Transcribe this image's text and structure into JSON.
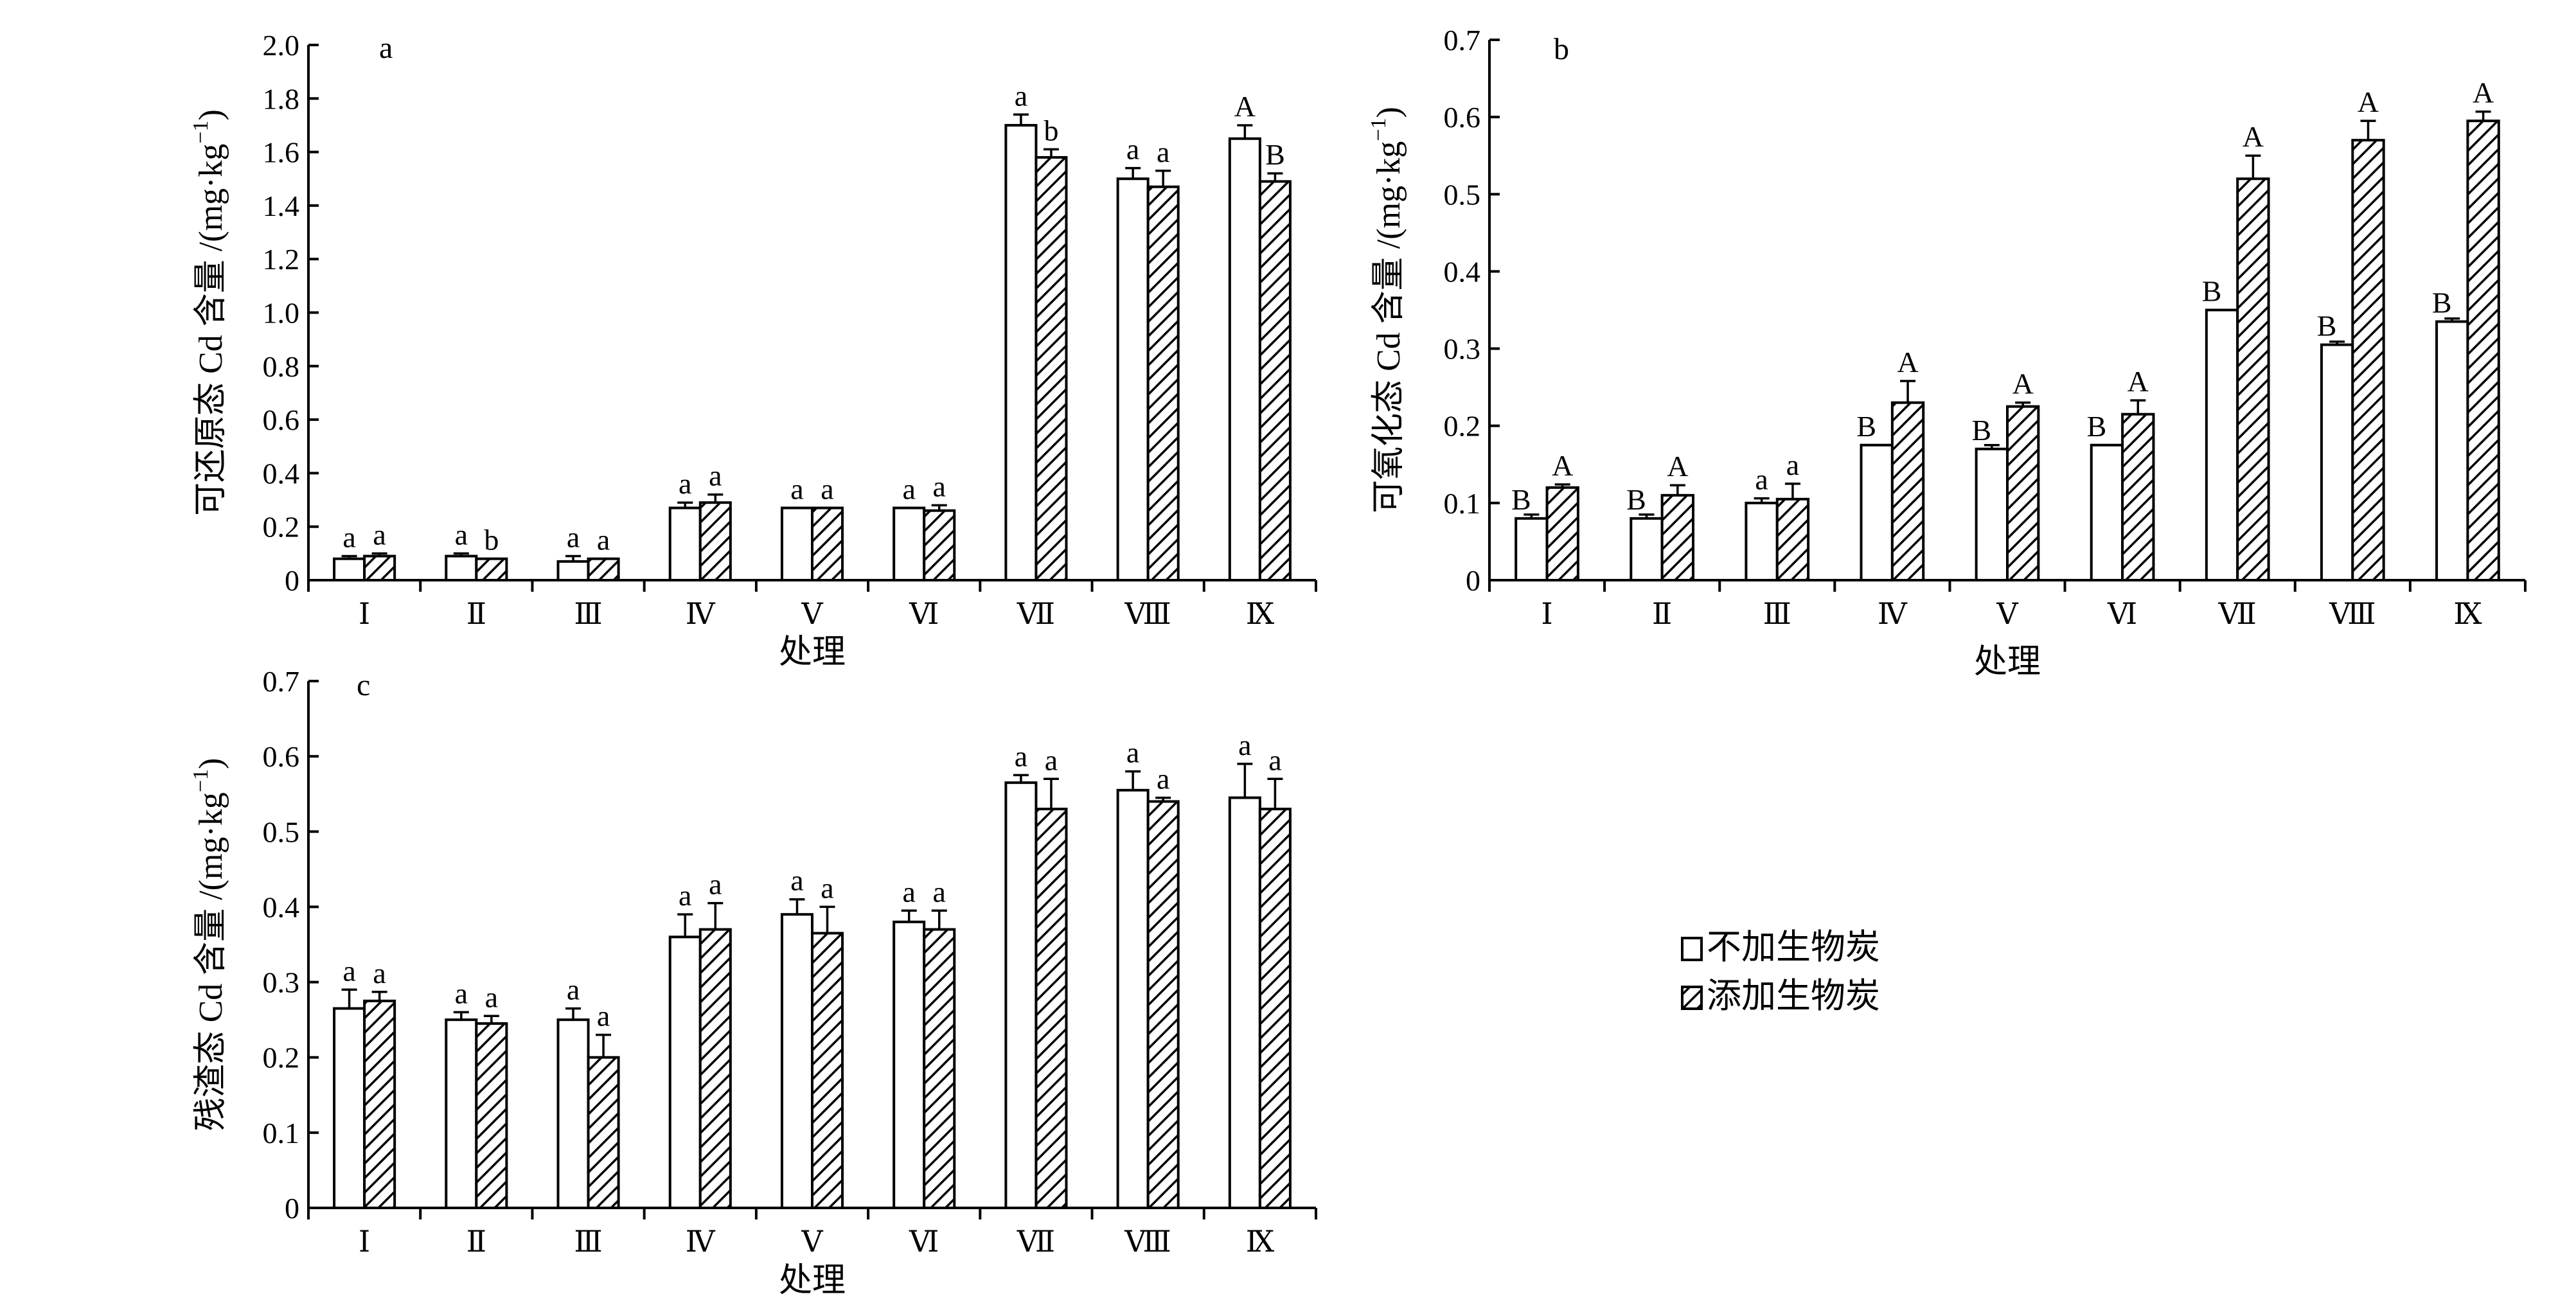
{
  "legend": {
    "items": [
      {
        "label": "不加生物炭",
        "style": "plain"
      },
      {
        "label": "添加生物炭",
        "style": "hatched"
      }
    ]
  },
  "chart_data": [
    {
      "type": "bar",
      "panel": "a",
      "xlabel": "处理",
      "ylabel": "可还原态 Cd 含量 /(mg·kg",
      "ylabel_sup": "−1",
      "ylabel_tail": ")",
      "ylim": [
        0,
        2.0
      ],
      "yticks": [
        {
          "v": 0,
          "t": "0"
        },
        {
          "v": 0.2,
          "t": "0.2"
        },
        {
          "v": 0.4,
          "t": "0.4"
        },
        {
          "v": 0.6,
          "t": "0.6"
        },
        {
          "v": 0.8,
          "t": "0.8"
        },
        {
          "v": 1.0,
          "t": "1.0"
        },
        {
          "v": 1.2,
          "t": "1.2"
        },
        {
          "v": 1.4,
          "t": "1.4"
        },
        {
          "v": 1.6,
          "t": "1.6"
        },
        {
          "v": 1.8,
          "t": "1.8"
        },
        {
          "v": 2.0,
          "t": "2.0"
        }
      ],
      "categories": [
        "Ⅰ",
        "Ⅱ",
        "Ⅲ",
        "Ⅳ",
        "Ⅴ",
        "Ⅵ",
        "Ⅶ",
        "Ⅷ",
        "Ⅸ"
      ],
      "series": [
        {
          "name": "不加生物炭",
          "values": [
            0.08,
            0.09,
            0.07,
            0.27,
            0.27,
            0.27,
            1.7,
            1.5,
            1.65
          ],
          "errors": [
            0.01,
            0.01,
            0.02,
            0.02,
            0.0,
            0.0,
            0.04,
            0.04,
            0.05
          ],
          "labels": [
            "a",
            "a",
            "a",
            "a",
            "a",
            "a",
            "a",
            "a",
            "A"
          ]
        },
        {
          "name": "添加生物炭",
          "values": [
            0.09,
            0.08,
            0.08,
            0.29,
            0.27,
            0.26,
            1.58,
            1.47,
            1.49
          ],
          "errors": [
            0.01,
            0.0,
            0.0,
            0.03,
            0.0,
            0.02,
            0.03,
            0.06,
            0.03
          ],
          "labels": [
            "a",
            "b",
            "a",
            "a",
            "a",
            "a",
            "b",
            "a",
            "B"
          ]
        }
      ]
    },
    {
      "type": "bar",
      "panel": "b",
      "xlabel": "处理",
      "ylabel": "可氧化态 Cd 含量 /(mg·kg",
      "ylabel_sup": "−1",
      "ylabel_tail": ")",
      "ylim": [
        0,
        0.7
      ],
      "yticks": [
        {
          "v": 0,
          "t": "0"
        },
        {
          "v": 0.1,
          "t": "0.1"
        },
        {
          "v": 0.2,
          "t": "0.2"
        },
        {
          "v": 0.3,
          "t": "0.3"
        },
        {
          "v": 0.4,
          "t": "0.4"
        },
        {
          "v": 0.5,
          "t": "0.5"
        },
        {
          "v": 0.6,
          "t": "0.6"
        },
        {
          "v": 0.7,
          "t": "0.7"
        }
      ],
      "categories": [
        "Ⅰ",
        "Ⅱ",
        "Ⅲ",
        "Ⅳ",
        "Ⅴ",
        "Ⅵ",
        "Ⅶ",
        "Ⅷ",
        "Ⅸ"
      ],
      "series": [
        {
          "name": "不加生物炭",
          "values": [
            0.08,
            0.08,
            0.1,
            0.175,
            0.17,
            0.175,
            0.35,
            0.305,
            0.335
          ],
          "errors": [
            0.005,
            0.005,
            0.006,
            0.0,
            0.005,
            0.0,
            0.0,
            0.004,
            0.004
          ],
          "labels": [
            "B",
            "B",
            "a",
            "B",
            "B",
            "B",
            "B",
            "B",
            "B"
          ]
        },
        {
          "name": "添加生物炭",
          "values": [
            0.12,
            0.11,
            0.105,
            0.23,
            0.225,
            0.215,
            0.52,
            0.57,
            0.595
          ],
          "errors": [
            0.004,
            0.013,
            0.02,
            0.028,
            0.005,
            0.018,
            0.03,
            0.025,
            0.012
          ],
          "labels": [
            "A",
            "A",
            "a",
            "A",
            "A",
            "A",
            "A",
            "A",
            "A"
          ]
        }
      ]
    },
    {
      "type": "bar",
      "panel": "c",
      "xlabel": "处理",
      "ylabel": "残渣态 Cd 含量 /(mg·kg",
      "ylabel_sup": "−1",
      "ylabel_tail": ")",
      "ylim": [
        0,
        0.7
      ],
      "yticks": [
        {
          "v": 0,
          "t": "0"
        },
        {
          "v": 0.1,
          "t": "0.1"
        },
        {
          "v": 0.2,
          "t": "0.2"
        },
        {
          "v": 0.3,
          "t": "0.3"
        },
        {
          "v": 0.4,
          "t": "0.4"
        },
        {
          "v": 0.5,
          "t": "0.5"
        },
        {
          "v": 0.6,
          "t": "0.6"
        },
        {
          "v": 0.7,
          "t": "0.7"
        }
      ],
      "categories": [
        "Ⅰ",
        "Ⅱ",
        "Ⅲ",
        "Ⅳ",
        "Ⅴ",
        "Ⅵ",
        "Ⅶ",
        "Ⅷ",
        "Ⅸ"
      ],
      "series": [
        {
          "name": "不加生物炭",
          "values": [
            0.265,
            0.25,
            0.25,
            0.36,
            0.39,
            0.38,
            0.565,
            0.555,
            0.545
          ],
          "errors": [
            0.025,
            0.01,
            0.015,
            0.03,
            0.02,
            0.015,
            0.01,
            0.025,
            0.045
          ],
          "labels": [
            "a",
            "a",
            "a",
            "a",
            "a",
            "a",
            "a",
            "a",
            "a"
          ]
        },
        {
          "name": "添加生物炭",
          "values": [
            0.275,
            0.245,
            0.2,
            0.37,
            0.365,
            0.37,
            0.53,
            0.54,
            0.53
          ],
          "errors": [
            0.012,
            0.01,
            0.03,
            0.035,
            0.035,
            0.025,
            0.04,
            0.005,
            0.04
          ],
          "labels": [
            "a",
            "a",
            "a",
            "a",
            "a",
            "a",
            "a",
            "a",
            "a"
          ]
        }
      ]
    }
  ]
}
